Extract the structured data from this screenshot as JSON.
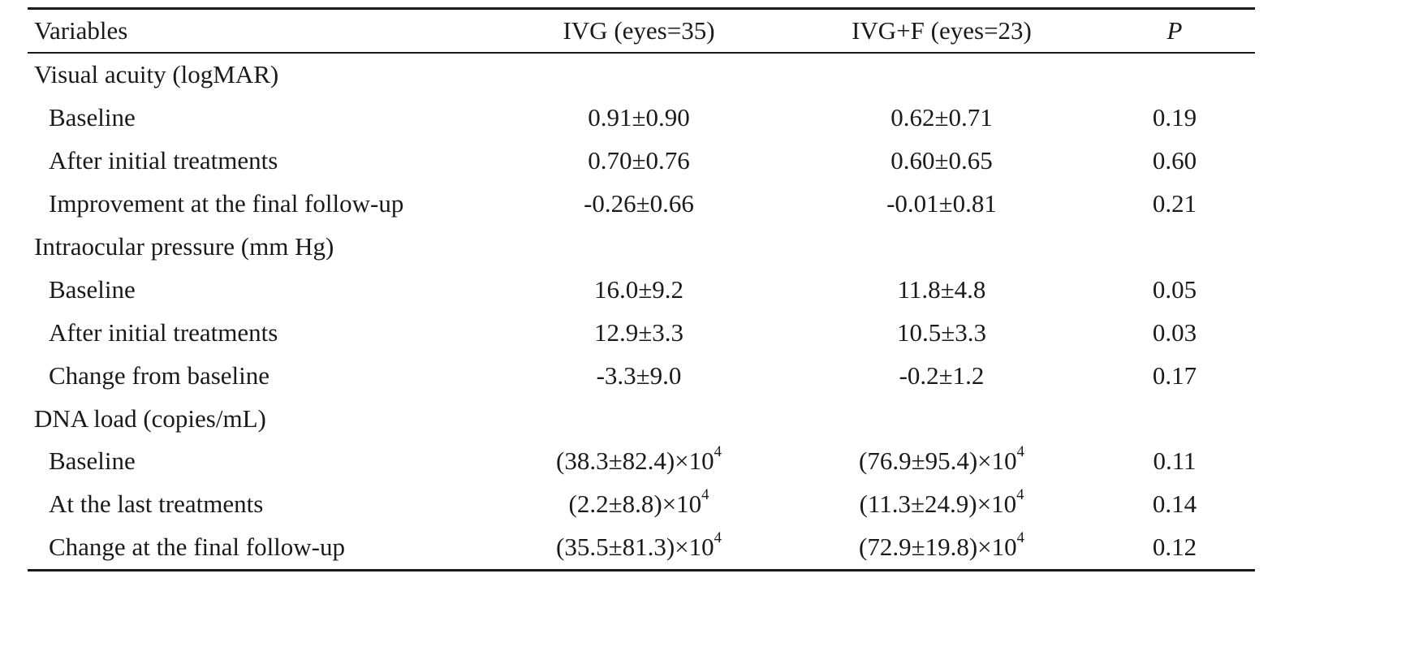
{
  "table": {
    "headers": {
      "variables": "Variables",
      "ivg": "IVG (eyes=35)",
      "ivgf": "IVG+F (eyes=23)",
      "p": "P"
    },
    "sections": [
      {
        "title": "Visual acuity (logMAR)",
        "rows": [
          {
            "label": "Baseline",
            "ivg": "0.91±0.90",
            "ivgf": "0.62±0.71",
            "p": "0.19"
          },
          {
            "label": "After initial treatments",
            "ivg": "0.70±0.76",
            "ivgf": "0.60±0.65",
            "p": "0.60"
          },
          {
            "label": "Improvement at the final follow-up",
            "ivg": "-0.26±0.66",
            "ivgf": "-0.01±0.81",
            "p": "0.21"
          }
        ]
      },
      {
        "title": "Intraocular pressure (mm Hg)",
        "rows": [
          {
            "label": "Baseline",
            "ivg": "16.0±9.2",
            "ivgf": "11.8±4.8",
            "p": "0.05"
          },
          {
            "label": "After initial treatments",
            "ivg": "12.9±3.3",
            "ivgf": "10.5±3.3",
            "p": "0.03"
          },
          {
            "label": "Change from baseline",
            "ivg": "-3.3±9.0",
            "ivgf": "-0.2±1.2",
            "p": "0.17"
          }
        ]
      },
      {
        "title": "DNA load (copies/mL)",
        "rows": [
          {
            "label": "Baseline",
            "ivg": "(38.3±82.4)×10",
            "ivg_exp": "4",
            "ivgf": "(76.9±95.4)×10",
            "ivgf_exp": "4",
            "p": "0.11"
          },
          {
            "label": "At the last treatments",
            "ivg": "(2.2±8.8)×10",
            "ivg_exp": "4",
            "ivgf": "(11.3±24.9)×10",
            "ivgf_exp": "4",
            "p": "0.14"
          },
          {
            "label": "Change at the final follow-up",
            "ivg": "(35.5±81.3)×10",
            "ivg_exp": "4",
            "ivgf": "(72.9±19.8)×10",
            "ivgf_exp": "4",
            "p": "0.12"
          }
        ]
      }
    ]
  }
}
